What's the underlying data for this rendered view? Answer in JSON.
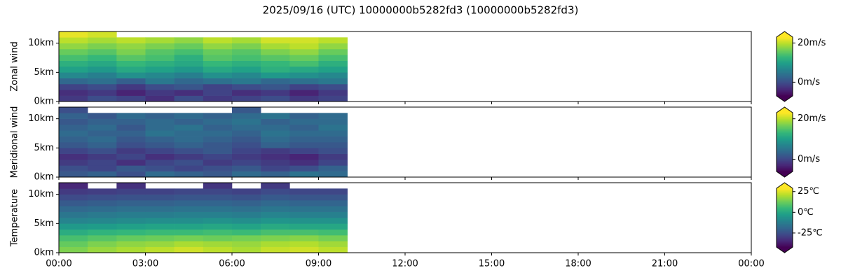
{
  "title": "2025/09/16 (UTC) 10000000b5282fd3 (10000000b5282fd3)",
  "chart_data": [
    {
      "type": "heatmap",
      "ylabel": "Zonal wind",
      "xbins": [
        0,
        1,
        2,
        3,
        4,
        5,
        6,
        7,
        8,
        9,
        10
      ],
      "ybins": [
        0,
        1,
        2,
        3,
        4,
        5,
        6,
        7,
        8,
        9,
        10,
        11,
        12
      ],
      "values": [
        [
          -2,
          0,
          -1,
          -3,
          0,
          -2,
          -1,
          0,
          -2,
          -1
        ],
        [
          -3,
          -2,
          -4,
          -2,
          -3,
          -1,
          -3,
          -2,
          -4,
          -2
        ],
        [
          -1,
          0,
          -2,
          0,
          1,
          -1,
          0,
          1,
          -1,
          0
        ],
        [
          3,
          4,
          2,
          5,
          3,
          4,
          5,
          3,
          4,
          5
        ],
        [
          7,
          6,
          8,
          7,
          6,
          8,
          7,
          9,
          8,
          7
        ],
        [
          10,
          9,
          11,
          10,
          9,
          11,
          10,
          12,
          11,
          10
        ],
        [
          12,
          11,
          13,
          12,
          11,
          13,
          12,
          13,
          14,
          12
        ],
        [
          14,
          13,
          15,
          14,
          12,
          15,
          14,
          15,
          16,
          14
        ],
        [
          16,
          15,
          17,
          15,
          14,
          16,
          15,
          17,
          18,
          16
        ],
        [
          18,
          17,
          18,
          17,
          16,
          18,
          17,
          19,
          20,
          18
        ],
        [
          20,
          19,
          20,
          19,
          18,
          20,
          19,
          21,
          21,
          20
        ],
        [
          22,
          21,
          null,
          null,
          null,
          null,
          null,
          null,
          null,
          null
        ]
      ],
      "xlim": [
        0,
        24
      ],
      "xticks": [
        0,
        3,
        6,
        9,
        12,
        15,
        18,
        21,
        24
      ],
      "ylim": [
        0,
        12
      ],
      "yticks": [
        {
          "value": 0,
          "label": "0km"
        },
        {
          "value": 5,
          "label": "5km"
        },
        {
          "value": 10,
          "label": "10km"
        }
      ],
      "colormap": "viridis",
      "clim": [
        -7,
        23
      ],
      "cticks": [
        {
          "value": 0,
          "label": "0m/s"
        },
        {
          "value": 20,
          "label": "20m/s"
        }
      ]
    },
    {
      "type": "heatmap",
      "ylabel": "Meridional wind",
      "xbins": [
        0,
        1,
        2,
        3,
        4,
        5,
        6,
        7,
        8,
        9,
        10
      ],
      "ybins": [
        0,
        1,
        2,
        3,
        4,
        5,
        6,
        7,
        8,
        9,
        10,
        11,
        12
      ],
      "values": [
        [
          2,
          3,
          1,
          4,
          3,
          2,
          4,
          3,
          5,
          4
        ],
        [
          1,
          0,
          2,
          1,
          0,
          1,
          2,
          0,
          1,
          3
        ],
        [
          -1,
          0,
          -2,
          0,
          1,
          -1,
          0,
          -1,
          -2,
          0
        ],
        [
          -2,
          -1,
          0,
          -2,
          -1,
          0,
          -1,
          -2,
          -3,
          -1
        ],
        [
          0,
          1,
          -1,
          0,
          1,
          2,
          0,
          -1,
          0,
          1
        ],
        [
          2,
          3,
          1,
          2,
          3,
          2,
          1,
          3,
          2,
          2
        ],
        [
          3,
          4,
          2,
          3,
          4,
          3,
          2,
          4,
          3,
          3
        ],
        [
          4,
          3,
          3,
          5,
          4,
          4,
          3,
          5,
          4,
          4
        ],
        [
          3,
          4,
          2,
          4,
          5,
          3,
          4,
          4,
          3,
          5
        ],
        [
          2,
          3,
          3,
          4,
          3,
          4,
          5,
          3,
          4,
          4
        ],
        [
          3,
          2,
          4,
          3,
          4,
          3,
          4,
          5,
          3,
          4
        ],
        [
          1,
          null,
          null,
          null,
          null,
          null,
          2,
          null,
          null,
          null
        ]
      ],
      "xlim": [
        0,
        24
      ],
      "xticks": [
        0,
        3,
        6,
        9,
        12,
        15,
        18,
        21,
        24
      ],
      "ylim": [
        0,
        12
      ],
      "yticks": [
        {
          "value": 0,
          "label": "0km"
        },
        {
          "value": 5,
          "label": "5km"
        },
        {
          "value": 10,
          "label": "10km"
        }
      ],
      "colormap": "viridis",
      "clim": [
        -6,
        23
      ],
      "cticks": [
        {
          "value": 0,
          "label": "0m/s"
        },
        {
          "value": 20,
          "label": "20m/s"
        }
      ]
    },
    {
      "type": "heatmap",
      "ylabel": "Temperature",
      "xbins": [
        0,
        1,
        2,
        3,
        4,
        5,
        6,
        7,
        8,
        9,
        10
      ],
      "ybins": [
        0,
        1,
        2,
        3,
        4,
        5,
        6,
        7,
        8,
        9,
        10,
        11,
        12
      ],
      "values": [
        [
          15,
          18,
          20,
          22,
          24,
          22,
          20,
          23,
          24,
          22
        ],
        [
          12,
          15,
          17,
          18,
          20,
          19,
          18,
          20,
          21,
          19
        ],
        [
          8,
          10,
          12,
          13,
          14,
          13,
          14,
          15,
          16,
          14
        ],
        [
          2,
          4,
          5,
          6,
          6,
          7,
          6,
          8,
          8,
          7
        ],
        [
          -4,
          -3,
          -2,
          -1,
          -1,
          0,
          -1,
          1,
          0,
          0
        ],
        [
          -10,
          -9,
          -8,
          -7,
          -7,
          -6,
          -7,
          -5,
          -6,
          -6
        ],
        [
          -14,
          -13,
          -12,
          -12,
          -11,
          -11,
          -12,
          -10,
          -11,
          -11
        ],
        [
          -18,
          -17,
          -16,
          -16,
          -15,
          -15,
          -16,
          -14,
          -15,
          -15
        ],
        [
          -22,
          -21,
          -20,
          -20,
          -19,
          -19,
          -20,
          -18,
          -19,
          -19
        ],
        [
          -26,
          -25,
          -24,
          -24,
          -23,
          -23,
          -24,
          -22,
          -23,
          -23
        ],
        [
          -30,
          -29,
          -28,
          -28,
          -27,
          -27,
          -28,
          -26,
          -27,
          -27
        ],
        [
          -34,
          null,
          -32,
          null,
          null,
          -31,
          null,
          -30,
          null,
          null
        ]
      ],
      "xlim": [
        0,
        24
      ],
      "xticks": [
        {
          "value": 0,
          "label": "00:00"
        },
        {
          "value": 3,
          "label": "03:00"
        },
        {
          "value": 6,
          "label": "06:00"
        },
        {
          "value": 9,
          "label": "09:00"
        },
        {
          "value": 12,
          "label": "12:00"
        },
        {
          "value": 15,
          "label": "15:00"
        },
        {
          "value": 18,
          "label": "18:00"
        },
        {
          "value": 21,
          "label": "21:00"
        },
        {
          "value": 24,
          "label": "00:00"
        }
      ],
      "ylim": [
        0,
        12
      ],
      "yticks": [
        {
          "value": 0,
          "label": "0km"
        },
        {
          "value": 5,
          "label": "5km"
        },
        {
          "value": 10,
          "label": "10km"
        }
      ],
      "colormap": "viridis",
      "clim": [
        -42,
        29
      ],
      "cticks": [
        {
          "value": 25,
          "label": "25℃"
        },
        {
          "value": 0,
          "label": "0℃"
        },
        {
          "value": -25,
          "label": "-25℃"
        }
      ]
    }
  ]
}
